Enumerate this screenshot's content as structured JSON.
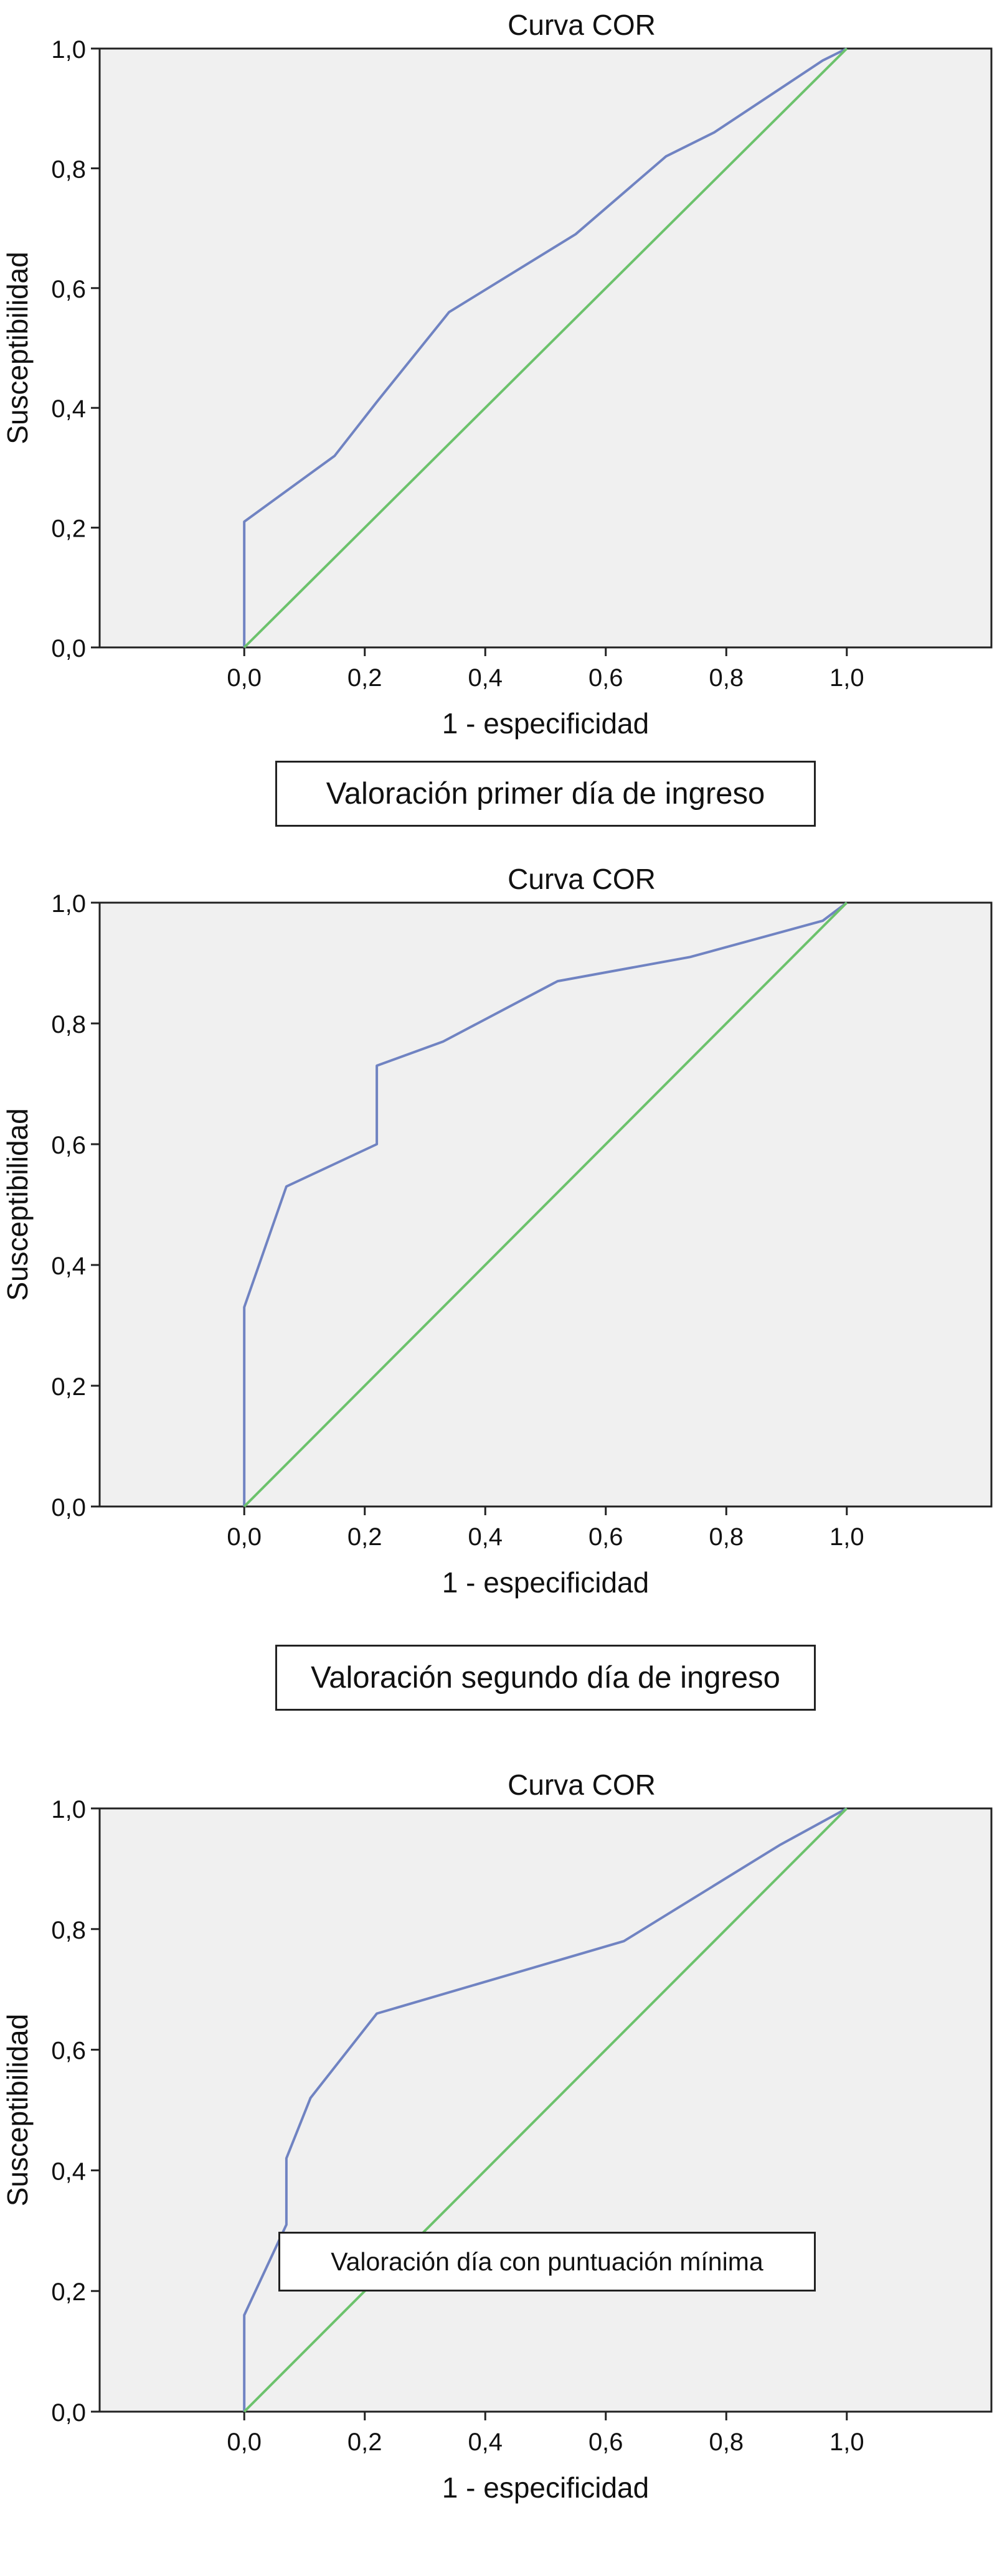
{
  "colors": {
    "plot_background": "#f0f0f0",
    "roc_curve": "#7083c2",
    "reference_line": "#6cc26c",
    "frame": "#222222",
    "text": "#111111"
  },
  "chart_data": [
    {
      "type": "line",
      "title": "Curva COR",
      "xlabel": "1 - especificidad",
      "ylabel": "Susceptibilidad",
      "caption": "Valoración primer día de ingreso",
      "xlim": [
        -0.24,
        1.24
      ],
      "ylim": [
        0,
        1
      ],
      "x_ticks": [
        0.0,
        0.2,
        0.4,
        0.6,
        0.8,
        1.0
      ],
      "x_tick_labels": [
        "0,0",
        "0,2",
        "0,4",
        "0,6",
        "0,8",
        "1,0"
      ],
      "y_ticks": [
        0.0,
        0.2,
        0.4,
        0.6,
        0.8,
        1.0
      ],
      "y_tick_labels": [
        "0,0",
        "0,2",
        "0,4",
        "0,6",
        "0,8",
        "1,0"
      ],
      "grid": false,
      "series": [
        {
          "role": "roc",
          "x": [
            0.0,
            0.0,
            0.15,
            0.22,
            0.34,
            0.55,
            0.7,
            0.78,
            0.96,
            1.0
          ],
          "y": [
            0.0,
            0.21,
            0.32,
            0.41,
            0.56,
            0.69,
            0.82,
            0.86,
            0.98,
            1.0
          ]
        },
        {
          "role": "reference",
          "x": [
            0.0,
            1.0
          ],
          "y": [
            0.0,
            1.0
          ]
        }
      ]
    },
    {
      "type": "line",
      "title": "Curva COR",
      "xlabel": "1 - especificidad",
      "ylabel": "Susceptibilidad",
      "caption": "Valoración segundo día de ingreso",
      "xlim": [
        -0.24,
        1.24
      ],
      "ylim": [
        0,
        1
      ],
      "x_ticks": [
        0.0,
        0.2,
        0.4,
        0.6,
        0.8,
        1.0
      ],
      "x_tick_labels": [
        "0,0",
        "0,2",
        "0,4",
        "0,6",
        "0,8",
        "1,0"
      ],
      "y_ticks": [
        0.0,
        0.2,
        0.4,
        0.6,
        0.8,
        1.0
      ],
      "y_tick_labels": [
        "0,0",
        "0,2",
        "0,4",
        "0,6",
        "0,8",
        "1,0"
      ],
      "grid": false,
      "series": [
        {
          "role": "roc",
          "x": [
            0.0,
            0.0,
            0.07,
            0.22,
            0.22,
            0.33,
            0.52,
            0.74,
            0.96,
            1.0
          ],
          "y": [
            0.0,
            0.33,
            0.53,
            0.6,
            0.73,
            0.77,
            0.87,
            0.91,
            0.97,
            1.0
          ]
        },
        {
          "role": "reference",
          "x": [
            0.0,
            1.0
          ],
          "y": [
            0.0,
            1.0
          ]
        }
      ]
    },
    {
      "type": "line",
      "title": "Curva COR",
      "xlabel": "1 - especificidad",
      "ylabel": "Susceptibilidad",
      "caption": "Valoración día con puntuación mínima",
      "xlim": [
        -0.24,
        1.24
      ],
      "ylim": [
        0,
        1
      ],
      "x_ticks": [
        0.0,
        0.2,
        0.4,
        0.6,
        0.8,
        1.0
      ],
      "x_tick_labels": [
        "0,0",
        "0,2",
        "0,4",
        "0,6",
        "0,8",
        "1,0"
      ],
      "y_ticks": [
        0.0,
        0.2,
        0.4,
        0.6,
        0.8,
        1.0
      ],
      "y_tick_labels": [
        "0,0",
        "0,2",
        "0,4",
        "0,6",
        "0,8",
        "1,0"
      ],
      "grid": false,
      "series": [
        {
          "role": "roc",
          "x": [
            0.0,
            0.0,
            0.07,
            0.07,
            0.11,
            0.22,
            0.63,
            0.89,
            1.0
          ],
          "y": [
            0.0,
            0.16,
            0.31,
            0.42,
            0.52,
            0.66,
            0.78,
            0.94,
            1.0
          ]
        },
        {
          "role": "reference",
          "x": [
            0.0,
            1.0
          ],
          "y": [
            0.0,
            1.0
          ]
        }
      ]
    }
  ]
}
